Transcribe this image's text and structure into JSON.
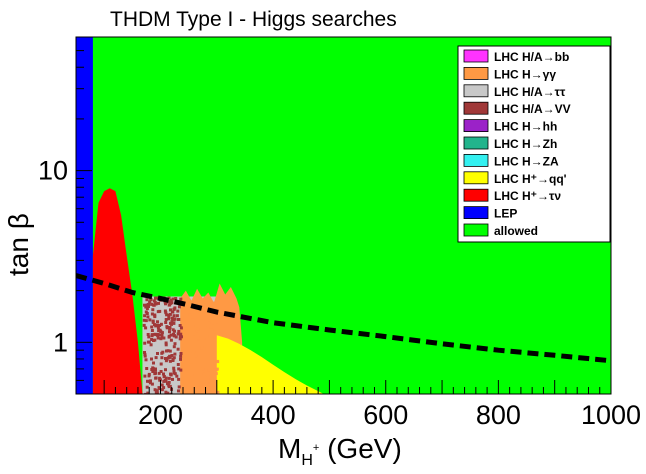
{
  "chart_data": {
    "type": "area",
    "title": "THDM Type I - Higgs searches",
    "xlabel": {
      "main": "M",
      "sub": "H",
      "sup": "+",
      "unit": " (GeV)"
    },
    "ylabel": {
      "main": "tan ",
      "greek": "β"
    },
    "xlim": [
      50,
      1000
    ],
    "ylim": [
      0.5,
      60
    ],
    "yscale": "log",
    "xticks": [
      200,
      400,
      600,
      800,
      1000
    ],
    "yticks": [
      1,
      10
    ],
    "ytick_labels": [
      "1",
      "10"
    ],
    "legend_position": "top-right",
    "legend": [
      {
        "label": "LHC H/A→bb",
        "color": "#ff33ff"
      },
      {
        "label": "LHC H→γγ",
        "color": "#ff9944"
      },
      {
        "label": "LHC H/A→ττ",
        "color": "#c8c8c8"
      },
      {
        "label": "LHC H/A→VV",
        "color": "#a03838"
      },
      {
        "label": "LHC H→hh",
        "color": "#9b22c8"
      },
      {
        "label": "LHC H→Zh",
        "color": "#22b48c"
      },
      {
        "label": "LHC H→ZA",
        "color": "#33f0f0"
      },
      {
        "label": "LHC H⁺→qq'",
        "color": "#ffff00"
      },
      {
        "label": "LHC H⁺→τν",
        "color": "#ff0000"
      },
      {
        "label": "LEP",
        "color": "#0000ff"
      },
      {
        "label": "allowed",
        "color": "#00ff00"
      }
    ],
    "regions": {
      "allowed": {
        "color": "#00ff00"
      },
      "lep": {
        "color": "#0000ff",
        "x_max": 80
      },
      "lhc_taunu": {
        "color": "#ff0000",
        "x": [
          80,
          90,
          100,
          110,
          120,
          130,
          140,
          150,
          160,
          168
        ],
        "tanb_max": [
          3.2,
          6.5,
          7.6,
          7.9,
          7.6,
          5.5,
          3.2,
          1.9,
          1.0,
          0.5
        ]
      },
      "lhc_vv": {
        "color": "#a03838",
        "x_range": [
          168,
          235
        ],
        "tanb_max": 1.85
      },
      "lhc_tautau": {
        "color": "#c8c8c8",
        "x_range": [
          168,
          300
        ],
        "tanb_max": 1.85
      },
      "lhc_gamgam": {
        "color": "#ff9944",
        "x": [
          235,
          245,
          255,
          265,
          275,
          285,
          295,
          305,
          315,
          325,
          335,
          340,
          345
        ],
        "tanb_max": [
          1.8,
          2.0,
          1.75,
          2.05,
          1.8,
          1.95,
          1.7,
          2.2,
          1.9,
          2.1,
          1.8,
          1.6,
          1.0
        ]
      },
      "lhc_qq": {
        "color": "#ffff00",
        "x": [
          300,
          320,
          340,
          360,
          380,
          400,
          420,
          440,
          460,
          480,
          490
        ],
        "tanb_max": [
          1.1,
          1.05,
          0.98,
          0.9,
          0.82,
          0.74,
          0.67,
          0.61,
          0.56,
          0.52,
          0.5
        ]
      }
    },
    "dashed_line": {
      "color": "#000000",
      "x": [
        50,
        100,
        150,
        200,
        250,
        300,
        400,
        500,
        600,
        700,
        800,
        900,
        1000
      ],
      "tanb": [
        2.45,
        2.2,
        1.95,
        1.8,
        1.65,
        1.5,
        1.3,
        1.18,
        1.08,
        0.98,
        0.9,
        0.84,
        0.78
      ]
    }
  }
}
